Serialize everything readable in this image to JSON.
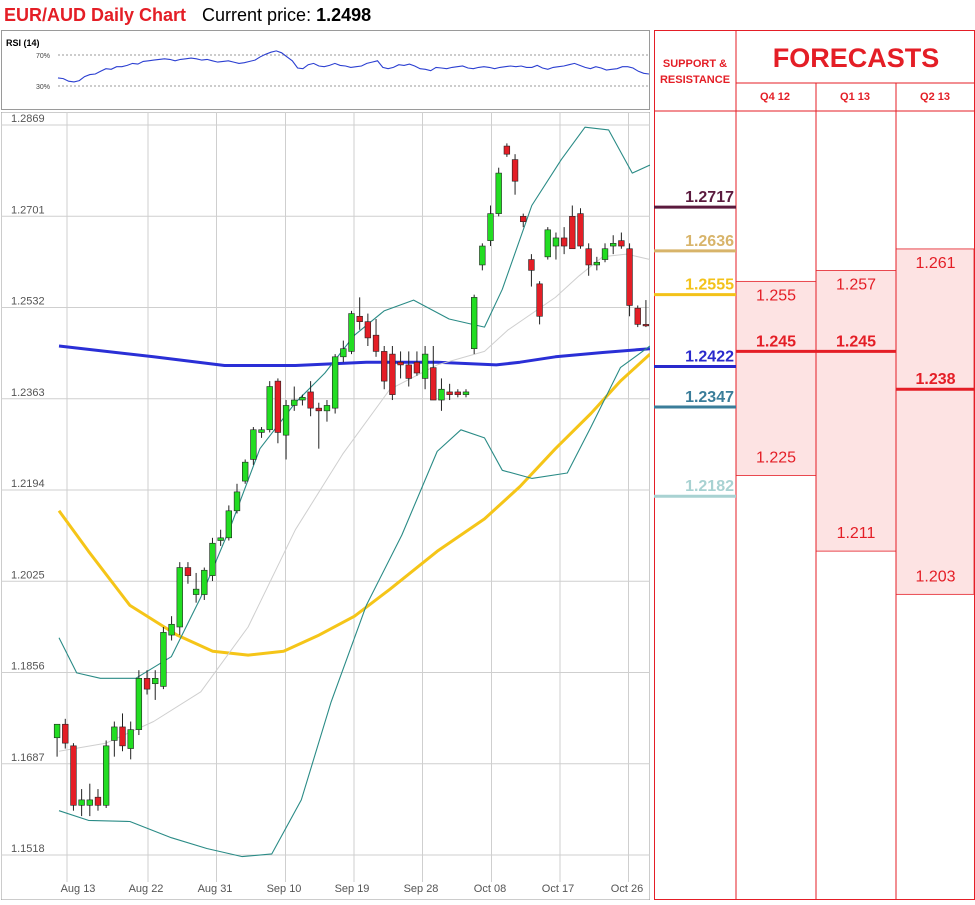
{
  "header": {
    "title": "EUR/AUD Daily Chart",
    "price_label": "Current price:",
    "price_value": "1.2498"
  },
  "rsi": {
    "label": "RSI (14)",
    "upper_label": "70%",
    "lower_label": "30%",
    "upper": 70,
    "lower": 30,
    "values": [
      38,
      37,
      33,
      32,
      34,
      40,
      43,
      44,
      48,
      52,
      51,
      55,
      55,
      57,
      60,
      59,
      63,
      64,
      65,
      66,
      67,
      66,
      64,
      66,
      67,
      68,
      67,
      65,
      66,
      64,
      62,
      63,
      64,
      62,
      60,
      61,
      63,
      65,
      70,
      74,
      77,
      79,
      76,
      70,
      64,
      53,
      52,
      58,
      60,
      56,
      55,
      57,
      60,
      57,
      56,
      54,
      55,
      56,
      60,
      62,
      64,
      54,
      52,
      54,
      58,
      57,
      59,
      56,
      52,
      51,
      49,
      54,
      53,
      52,
      54,
      55,
      56,
      53,
      52,
      54,
      55,
      54,
      52,
      54,
      55,
      56,
      55,
      56,
      54,
      54,
      57,
      53,
      51,
      54,
      55,
      56,
      58,
      60,
      57,
      54,
      52,
      55,
      53,
      50,
      51,
      52,
      55,
      55,
      53,
      48,
      45,
      44
    ]
  },
  "chart_data": {
    "type": "candlestick",
    "title": "EUR/AUD Daily Chart",
    "y_ticks": [
      "1.2869",
      "1.2701",
      "1.2532",
      "1.2363",
      "1.2194",
      "1.2025",
      "1.1856",
      "1.1687",
      "1.1518"
    ],
    "ylim": [
      1.1518,
      1.2869
    ],
    "x_ticks": [
      "Aug 13",
      "Aug 22",
      "Aug 31",
      "Sep 10",
      "Sep 19",
      "Sep 28",
      "Oct 08",
      "Oct 17",
      "Oct 26"
    ],
    "grid": true,
    "candles": [
      {
        "o": 1.1735,
        "h": 1.176,
        "l": 1.17,
        "c": 1.176
      },
      {
        "o": 1.176,
        "h": 1.177,
        "l": 1.1715,
        "c": 1.1725
      },
      {
        "o": 1.172,
        "h": 1.1725,
        "l": 1.16,
        "c": 1.161
      },
      {
        "o": 1.161,
        "h": 1.164,
        "l": 1.159,
        "c": 1.162
      },
      {
        "o": 1.161,
        "h": 1.165,
        "l": 1.159,
        "c": 1.162
      },
      {
        "o": 1.1625,
        "h": 1.164,
        "l": 1.16,
        "c": 1.161
      },
      {
        "o": 1.161,
        "h": 1.173,
        "l": 1.1605,
        "c": 1.172
      },
      {
        "o": 1.173,
        "h": 1.1765,
        "l": 1.17,
        "c": 1.1755
      },
      {
        "o": 1.1755,
        "h": 1.178,
        "l": 1.171,
        "c": 1.172
      },
      {
        "o": 1.1715,
        "h": 1.1765,
        "l": 1.1695,
        "c": 1.175
      },
      {
        "o": 1.175,
        "h": 1.186,
        "l": 1.174,
        "c": 1.1845
      },
      {
        "o": 1.1845,
        "h": 1.186,
        "l": 1.1815,
        "c": 1.1825
      },
      {
        "o": 1.1835,
        "h": 1.186,
        "l": 1.1805,
        "c": 1.1845
      },
      {
        "o": 1.183,
        "h": 1.194,
        "l": 1.1825,
        "c": 1.193
      },
      {
        "o": 1.1925,
        "h": 1.196,
        "l": 1.1915,
        "c": 1.1945
      },
      {
        "o": 1.194,
        "h": 1.206,
        "l": 1.1925,
        "c": 1.205
      },
      {
        "o": 1.205,
        "h": 1.206,
        "l": 1.202,
        "c": 1.2035
      },
      {
        "o": 1.2,
        "h": 1.204,
        "l": 1.1985,
        "c": 1.201
      },
      {
        "o": 1.2,
        "h": 1.205,
        "l": 1.199,
        "c": 1.2045
      },
      {
        "o": 1.2035,
        "h": 1.2105,
        "l": 1.2025,
        "c": 1.2095
      },
      {
        "o": 1.21,
        "h": 1.212,
        "l": 1.209,
        "c": 1.2105
      },
      {
        "o": 1.2105,
        "h": 1.2165,
        "l": 1.21,
        "c": 1.2155
      },
      {
        "o": 1.2155,
        "h": 1.2205,
        "l": 1.215,
        "c": 1.219
      },
      {
        "o": 1.221,
        "h": 1.225,
        "l": 1.2205,
        "c": 1.2245
      },
      {
        "o": 1.225,
        "h": 1.231,
        "l": 1.224,
        "c": 1.2305
      },
      {
        "o": 1.23,
        "h": 1.231,
        "l": 1.229,
        "c": 1.2305
      },
      {
        "o": 1.2305,
        "h": 1.2395,
        "l": 1.23,
        "c": 1.2385
      },
      {
        "o": 1.2395,
        "h": 1.24,
        "l": 1.228,
        "c": 1.23
      },
      {
        "o": 1.2295,
        "h": 1.236,
        "l": 1.225,
        "c": 1.235
      },
      {
        "o": 1.235,
        "h": 1.2385,
        "l": 1.234,
        "c": 1.236
      },
      {
        "o": 1.236,
        "h": 1.237,
        "l": 1.235,
        "c": 1.2365
      },
      {
        "o": 1.2375,
        "h": 1.2395,
        "l": 1.233,
        "c": 1.2345
      },
      {
        "o": 1.2345,
        "h": 1.2355,
        "l": 1.227,
        "c": 1.234
      },
      {
        "o": 1.234,
        "h": 1.236,
        "l": 1.232,
        "c": 1.235
      },
      {
        "o": 1.2345,
        "h": 1.2445,
        "l": 1.2335,
        "c": 1.244
      },
      {
        "o": 1.244,
        "h": 1.247,
        "l": 1.243,
        "c": 1.2455
      },
      {
        "o": 1.245,
        "h": 1.2525,
        "l": 1.2445,
        "c": 1.252
      },
      {
        "o": 1.2515,
        "h": 1.255,
        "l": 1.249,
        "c": 1.2505
      },
      {
        "o": 1.2505,
        "h": 1.252,
        "l": 1.246,
        "c": 1.2475
      },
      {
        "o": 1.248,
        "h": 1.251,
        "l": 1.244,
        "c": 1.245
      },
      {
        "o": 1.245,
        "h": 1.246,
        "l": 1.238,
        "c": 1.2395
      },
      {
        "o": 1.2445,
        "h": 1.246,
        "l": 1.236,
        "c": 1.237
      },
      {
        "o": 1.243,
        "h": 1.245,
        "l": 1.24,
        "c": 1.2425
      },
      {
        "o": 1.2425,
        "h": 1.245,
        "l": 1.2385,
        "c": 1.24
      },
      {
        "o": 1.243,
        "h": 1.245,
        "l": 1.2405,
        "c": 1.241
      },
      {
        "o": 1.24,
        "h": 1.246,
        "l": 1.238,
        "c": 1.2445
      },
      {
        "o": 1.242,
        "h": 1.246,
        "l": 1.236,
        "c": 1.236
      },
      {
        "o": 1.236,
        "h": 1.24,
        "l": 1.234,
        "c": 1.238
      },
      {
        "o": 1.2375,
        "h": 1.239,
        "l": 1.236,
        "c": 1.237
      },
      {
        "o": 1.2375,
        "h": 1.238,
        "l": 1.2365,
        "c": 1.237
      },
      {
        "o": 1.237,
        "h": 1.238,
        "l": 1.2365,
        "c": 1.2375
      },
      {
        "o": 1.2455,
        "h": 1.2555,
        "l": 1.2445,
        "c": 1.255
      },
      {
        "o": 1.261,
        "h": 1.265,
        "l": 1.26,
        "c": 1.2645
      },
      {
        "o": 1.2655,
        "h": 1.272,
        "l": 1.2645,
        "c": 1.2705
      },
      {
        "o": 1.2705,
        "h": 1.279,
        "l": 1.27,
        "c": 1.278
      },
      {
        "o": 1.283,
        "h": 1.2835,
        "l": 1.281,
        "c": 1.2815
      },
      {
        "o": 1.2805,
        "h": 1.2815,
        "l": 1.274,
        "c": 1.2765
      },
      {
        "o": 1.27,
        "h": 1.2705,
        "l": 1.268,
        "c": 1.269
      },
      {
        "o": 1.262,
        "h": 1.263,
        "l": 1.257,
        "c": 1.26
      },
      {
        "o": 1.2575,
        "h": 1.258,
        "l": 1.25,
        "c": 1.2515
      },
      {
        "o": 1.2625,
        "h": 1.268,
        "l": 1.262,
        "c": 1.2675
      },
      {
        "o": 1.2645,
        "h": 1.267,
        "l": 1.262,
        "c": 1.266
      },
      {
        "o": 1.266,
        "h": 1.268,
        "l": 1.263,
        "c": 1.2645
      },
      {
        "o": 1.27,
        "h": 1.272,
        "l": 1.264,
        "c": 1.264
      },
      {
        "o": 1.2705,
        "h": 1.2715,
        "l": 1.264,
        "c": 1.2645
      },
      {
        "o": 1.264,
        "h": 1.265,
        "l": 1.259,
        "c": 1.261
      },
      {
        "o": 1.261,
        "h": 1.2625,
        "l": 1.26,
        "c": 1.2615
      },
      {
        "o": 1.262,
        "h": 1.265,
        "l": 1.2615,
        "c": 1.264
      },
      {
        "o": 1.2645,
        "h": 1.2665,
        "l": 1.263,
        "c": 1.265
      },
      {
        "o": 1.2655,
        "h": 1.267,
        "l": 1.264,
        "c": 1.2645
      },
      {
        "o": 1.264,
        "h": 1.265,
        "l": 1.2515,
        "c": 1.2535
      },
      {
        "o": 1.253,
        "h": 1.2535,
        "l": 1.2495,
        "c": 1.25
      },
      {
        "o": 1.25,
        "h": 1.2545,
        "l": 1.2495,
        "c": 1.2498
      }
    ],
    "indicators": [
      {
        "key": "ma_long",
        "color": "#2a2fd6",
        "values": [
          [
            0,
            1.246
          ],
          [
            0.16,
            1.244
          ],
          [
            0.28,
            1.2424
          ],
          [
            0.4,
            1.2424
          ],
          [
            0.52,
            1.243
          ],
          [
            0.64,
            1.243
          ],
          [
            0.74,
            1.2425
          ],
          [
            0.78,
            1.243
          ],
          [
            0.84,
            1.244
          ],
          [
            0.92,
            1.2448
          ],
          [
            1.0,
            1.2455
          ]
        ]
      },
      {
        "key": "ma_mid",
        "color": "#f5c518",
        "values": [
          [
            0,
            1.2155
          ],
          [
            0.05,
            1.208
          ],
          [
            0.12,
            1.198
          ],
          [
            0.2,
            1.1925
          ],
          [
            0.26,
            1.1895
          ],
          [
            0.32,
            1.1888
          ],
          [
            0.38,
            1.1895
          ],
          [
            0.44,
            1.1925
          ],
          [
            0.5,
            1.196
          ],
          [
            0.56,
            1.201
          ],
          [
            0.64,
            1.208
          ],
          [
            0.72,
            1.214
          ],
          [
            0.78,
            1.22
          ],
          [
            0.84,
            1.227
          ],
          [
            0.9,
            1.2335
          ],
          [
            0.95,
            1.2395
          ],
          [
            1.0,
            1.2445
          ]
        ]
      },
      {
        "key": "bb_upper",
        "color": "#2a8b86",
        "values": [
          [
            0,
            1.192
          ],
          [
            0.03,
            1.1855
          ],
          [
            0.07,
            1.1845
          ],
          [
            0.13,
            1.1845
          ],
          [
            0.19,
            1.1885
          ],
          [
            0.24,
            1.1995
          ],
          [
            0.29,
            1.2125
          ],
          [
            0.34,
            1.227
          ],
          [
            0.4,
            1.2355
          ],
          [
            0.45,
            1.241
          ],
          [
            0.5,
            1.248
          ],
          [
            0.55,
            1.2525
          ],
          [
            0.6,
            1.2545
          ],
          [
            0.66,
            1.251
          ],
          [
            0.72,
            1.2495
          ],
          [
            0.75,
            1.2565
          ],
          [
            0.8,
            1.272
          ],
          [
            0.85,
            1.2805
          ],
          [
            0.89,
            1.2865
          ],
          [
            0.93,
            1.286
          ],
          [
            0.97,
            1.278
          ],
          [
            1.0,
            1.2795
          ]
        ]
      },
      {
        "key": "bb_mid",
        "color": "#cfcfcf",
        "values": [
          [
            0,
            1.171
          ],
          [
            0.08,
            1.1725
          ],
          [
            0.16,
            1.1765
          ],
          [
            0.24,
            1.182
          ],
          [
            0.32,
            1.194
          ],
          [
            0.4,
            1.212
          ],
          [
            0.48,
            1.226
          ],
          [
            0.56,
            1.238
          ],
          [
            0.64,
            1.2425
          ],
          [
            0.72,
            1.245
          ],
          [
            0.76,
            1.249
          ],
          [
            0.8,
            1.252
          ],
          [
            0.84,
            1.255
          ],
          [
            0.88,
            1.259
          ],
          [
            0.92,
            1.2625
          ],
          [
            0.96,
            1.263
          ],
          [
            1.0,
            1.262
          ]
        ]
      },
      {
        "key": "bb_lower",
        "color": "#2a8b86",
        "values": [
          [
            0,
            1.16
          ],
          [
            0.05,
            1.1582
          ],
          [
            0.12,
            1.158
          ],
          [
            0.19,
            1.155
          ],
          [
            0.25,
            1.153
          ],
          [
            0.31,
            1.1515
          ],
          [
            0.36,
            1.152
          ],
          [
            0.41,
            1.162
          ],
          [
            0.46,
            1.18
          ],
          [
            0.52,
            1.198
          ],
          [
            0.58,
            1.211
          ],
          [
            0.64,
            1.2265
          ],
          [
            0.68,
            1.2305
          ],
          [
            0.72,
            1.229
          ],
          [
            0.75,
            1.223
          ],
          [
            0.8,
            1.2215
          ],
          [
            0.86,
            1.2225
          ],
          [
            0.9,
            1.231
          ],
          [
            0.95,
            1.242
          ],
          [
            1.0,
            1.246
          ]
        ]
      }
    ]
  },
  "panel": {
    "sr_header": "SUPPORT & RESISTANCE",
    "forecast_header": "FORECASTS",
    "quarters": [
      "Q4 12",
      "Q1 13",
      "Q2 13"
    ],
    "levels": [
      {
        "value": "1.2717",
        "price": 1.2717,
        "color": "#5b1a3e"
      },
      {
        "value": "1.2636",
        "price": 1.2636,
        "color": "#d8b46a"
      },
      {
        "value": "1.2555",
        "price": 1.2555,
        "color": "#f3c21a"
      },
      {
        "value": "1.2422",
        "price": 1.2422,
        "color": "#2929cc"
      },
      {
        "value": "1.2347",
        "price": 1.2347,
        "color": "#3a7d9a"
      },
      {
        "value": "1.2182",
        "price": 1.2182,
        "color": "#a8d2d2"
      }
    ],
    "forecasts": [
      {
        "high": "1.255",
        "mid": "1.245",
        "low": "1.225",
        "high_v": 1.255,
        "mid_v": 1.245,
        "low_v": 1.225
      },
      {
        "high": "1.257",
        "mid": "1.245",
        "low": "1.211",
        "high_v": 1.257,
        "mid_v": 1.245,
        "low_v": 1.211
      },
      {
        "high": "1.261",
        "mid": "1.238",
        "low": "1.203",
        "high_v": 1.261,
        "mid_v": 1.238,
        "low_v": 1.203
      }
    ],
    "accent": "#e41e26",
    "band_fill": "#fde3e3"
  }
}
